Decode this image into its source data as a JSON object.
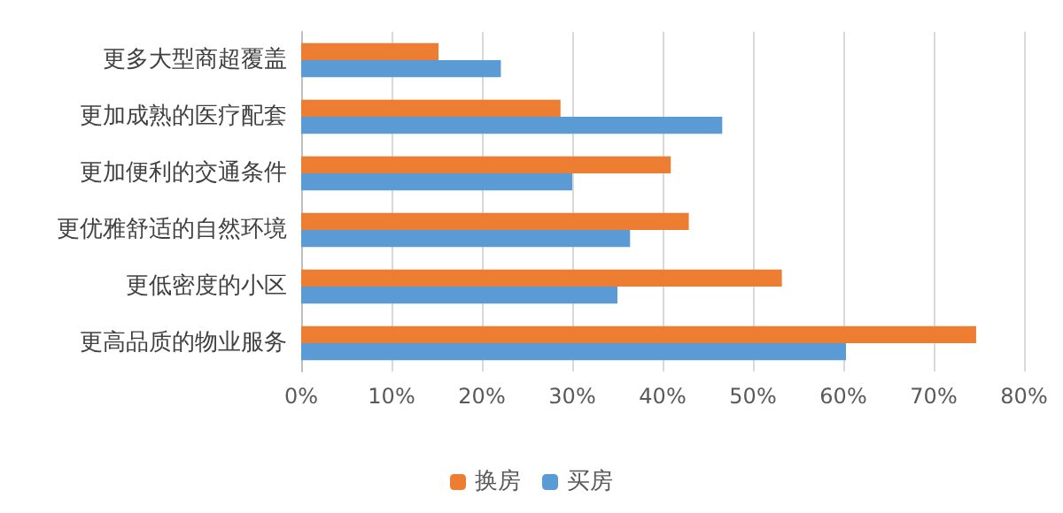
{
  "chart_data": {
    "type": "bar",
    "orientation": "horizontal",
    "categories": [
      "更多大型商超覆盖",
      "更加成熟的医疗配套",
      "更加便利的交通条件",
      "更优雅舒适的自然环境",
      "更低密度的小区",
      "更高品质的物业服务"
    ],
    "series": [
      {
        "name": "换房",
        "color": "#ed7d31",
        "values": [
          15.2,
          28.7,
          40.9,
          42.9,
          53.2,
          74.7
        ]
      },
      {
        "name": "买房",
        "color": "#5b9bd5",
        "values": [
          22.1,
          46.6,
          30.0,
          36.4,
          35.0,
          60.3
        ]
      }
    ],
    "xlim": [
      0,
      80
    ],
    "xticks": [
      {
        "value": 0,
        "label": "0%"
      },
      {
        "value": 10,
        "label": "10%"
      },
      {
        "value": 20,
        "label": "20%"
      },
      {
        "value": 30,
        "label": "30%"
      },
      {
        "value": 40,
        "label": "40%"
      },
      {
        "value": 50,
        "label": "50%"
      },
      {
        "value": 60,
        "label": "60%"
      },
      {
        "value": 70,
        "label": "70%"
      },
      {
        "value": 80,
        "label": "80%"
      }
    ],
    "grid": "x",
    "legend": "bottom"
  }
}
